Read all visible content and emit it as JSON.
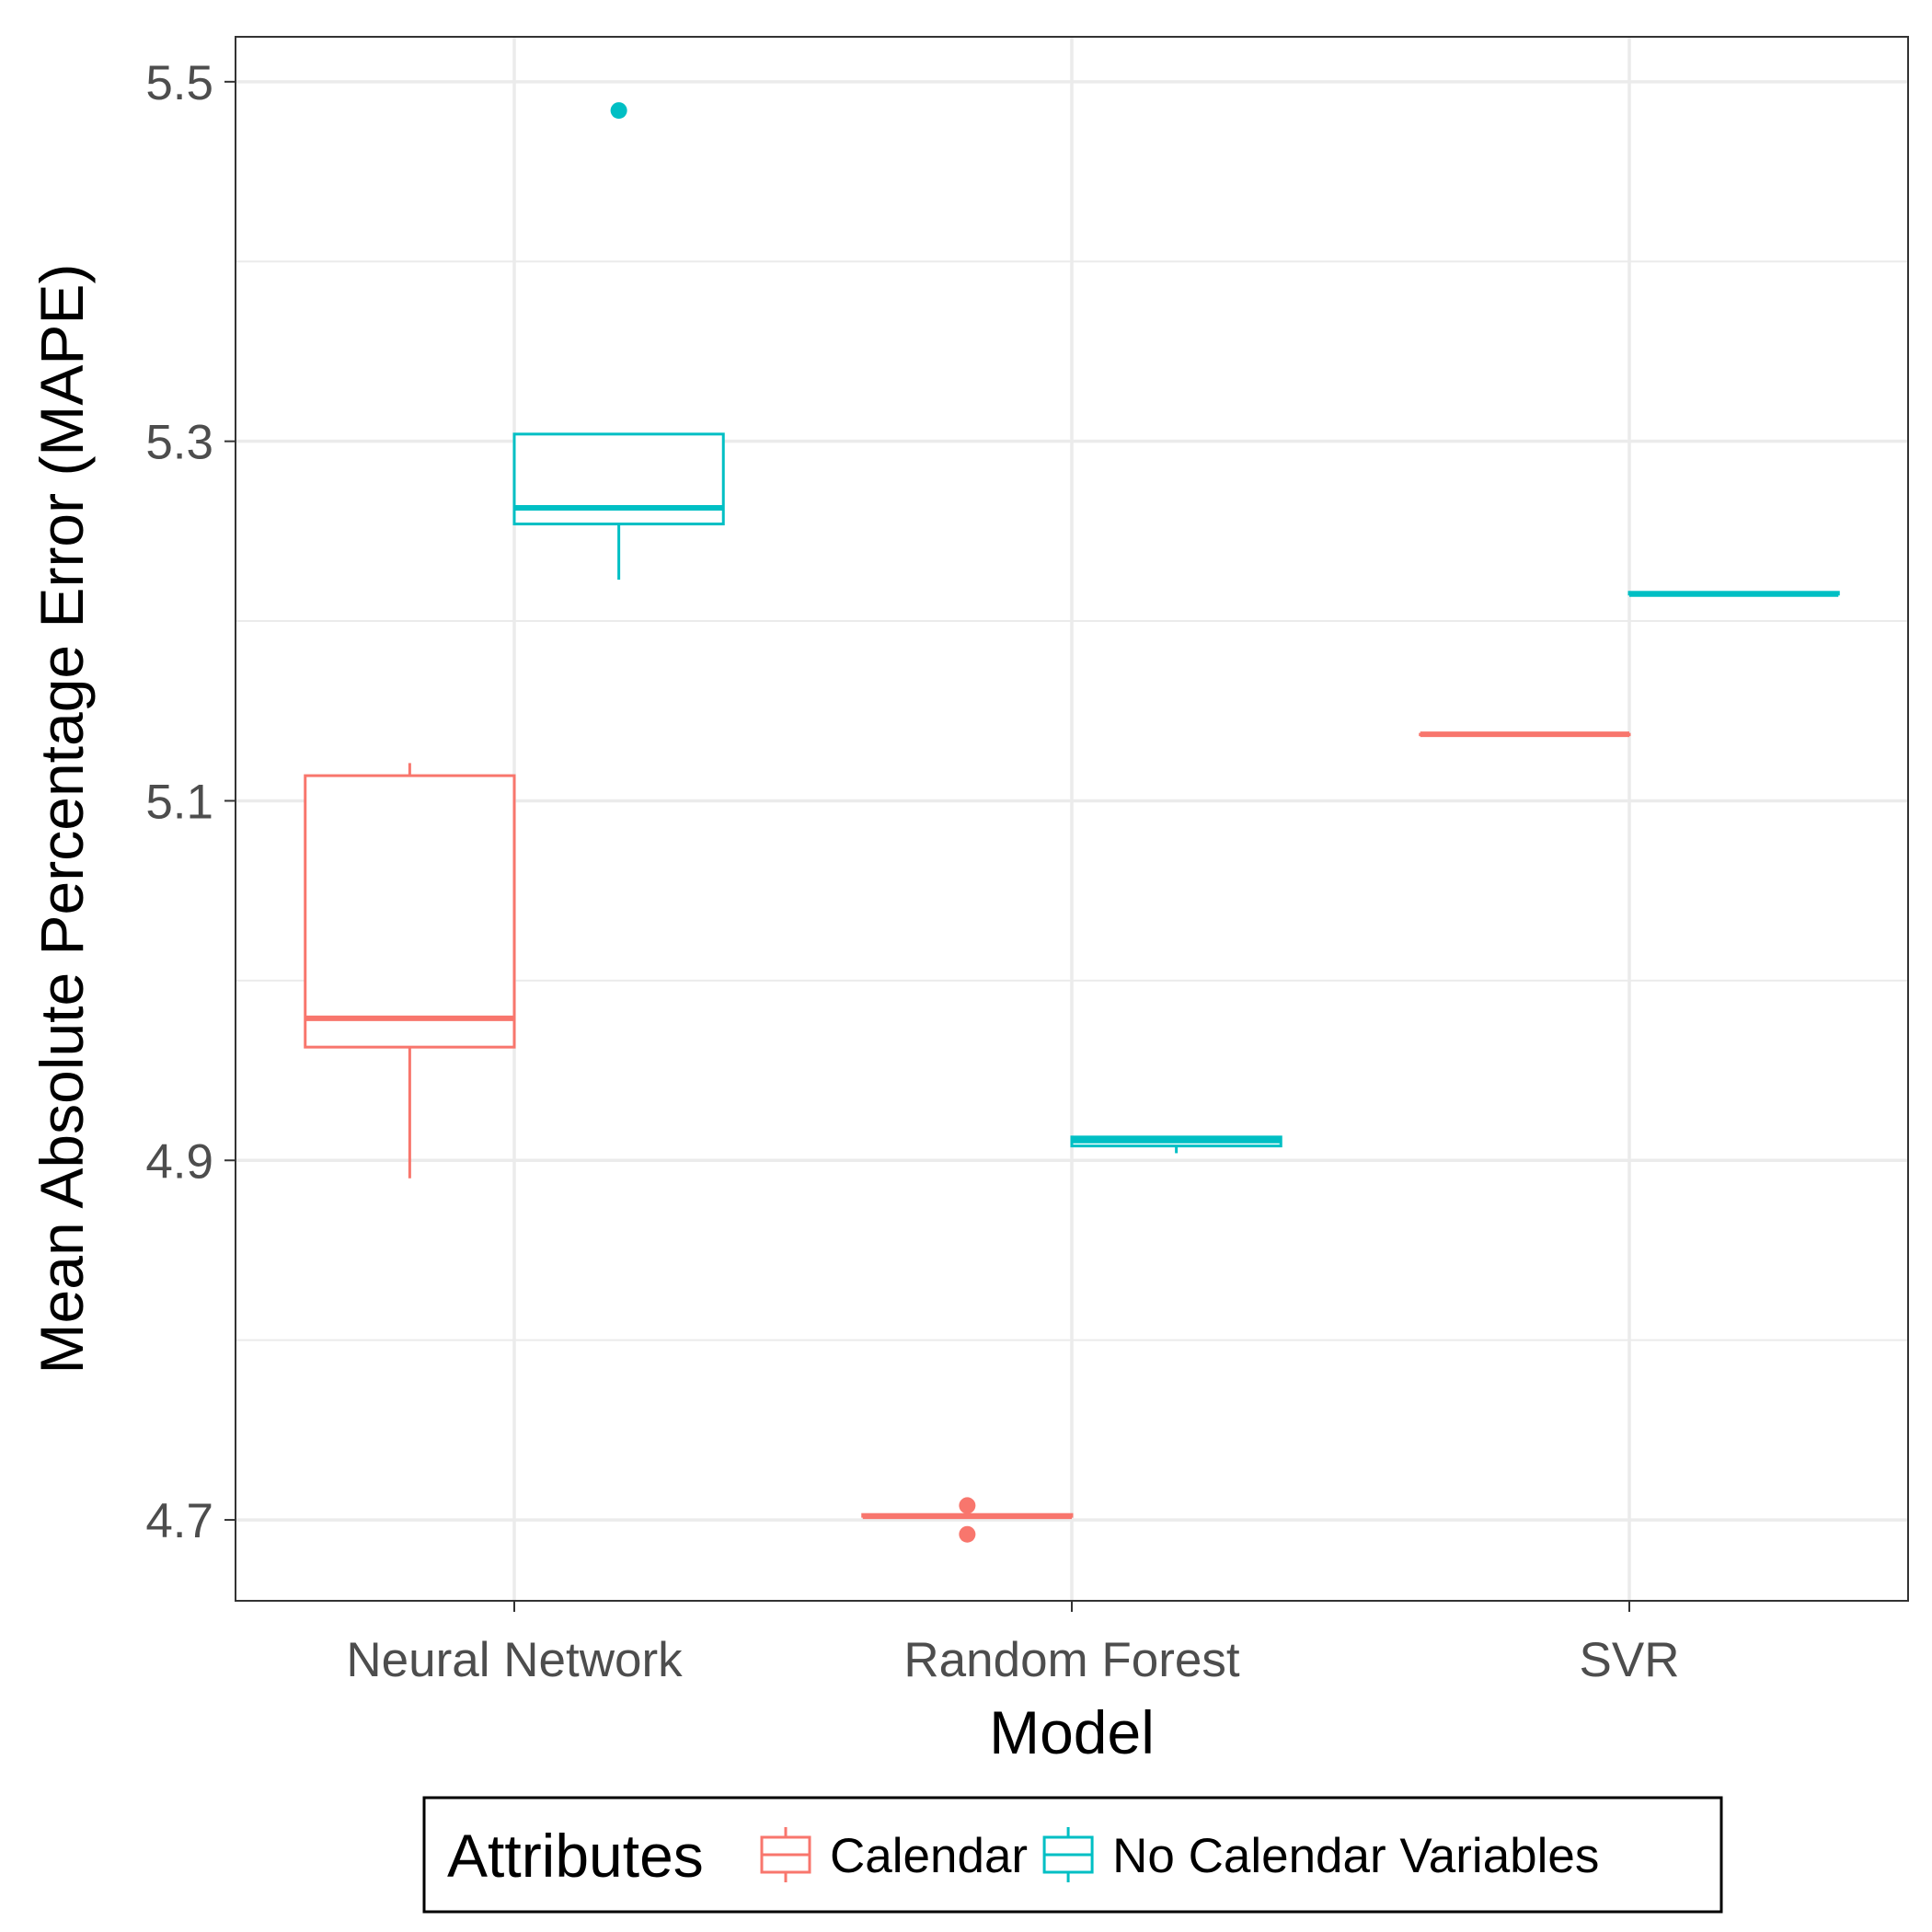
{
  "chart_data": {
    "type": "box",
    "xlabel": "Model",
    "ylabel": "Mean Absolute Percentage Error (MAPE)",
    "categories": [
      "Neural Network",
      "Random Forest",
      "SVR"
    ],
    "ylim": [
      4.655,
      5.525
    ],
    "yticks": [
      4.7,
      4.9,
      5.1,
      5.3,
      5.5
    ],
    "ytick_labels": [
      "4.7",
      "4.9",
      "5.1",
      "5.3",
      "5.5"
    ],
    "grid": true,
    "legend": {
      "title": "Attributes",
      "position": "bottom"
    },
    "series": [
      {
        "name": "Calendar",
        "color": "#F8766D",
        "boxes": [
          {
            "category": "Neural Network",
            "whisker_low": 4.89,
            "q1": 4.963,
            "median": 4.979,
            "q3": 5.114,
            "whisker_high": 5.121,
            "outliers": []
          },
          {
            "category": "Random Forest",
            "whisker_low": 4.702,
            "q1": 4.702,
            "median": 4.702,
            "q3": 4.703,
            "whisker_high": 4.703,
            "outliers": [
              4.708,
              4.692
            ]
          },
          {
            "category": "SVR",
            "whisker_low": 5.137,
            "q1": 5.137,
            "median": 5.137,
            "q3": 5.137,
            "whisker_high": 5.137,
            "outliers": []
          }
        ]
      },
      {
        "name": "No Calendar Variables",
        "color": "#00BFC4",
        "boxes": [
          {
            "category": "Neural Network",
            "whisker_low": 5.223,
            "q1": 5.254,
            "median": 5.263,
            "q3": 5.304,
            "whisker_high": 5.304,
            "outliers": [
              5.484
            ]
          },
          {
            "category": "Random Forest",
            "whisker_low": 4.904,
            "q1": 4.908,
            "median": 4.911,
            "q3": 4.913,
            "whisker_high": 4.913,
            "outliers": []
          },
          {
            "category": "SVR",
            "whisker_low": 5.215,
            "q1": 5.215,
            "median": 5.215,
            "q3": 5.216,
            "whisker_high": 5.216,
            "outliers": []
          }
        ]
      }
    ]
  }
}
